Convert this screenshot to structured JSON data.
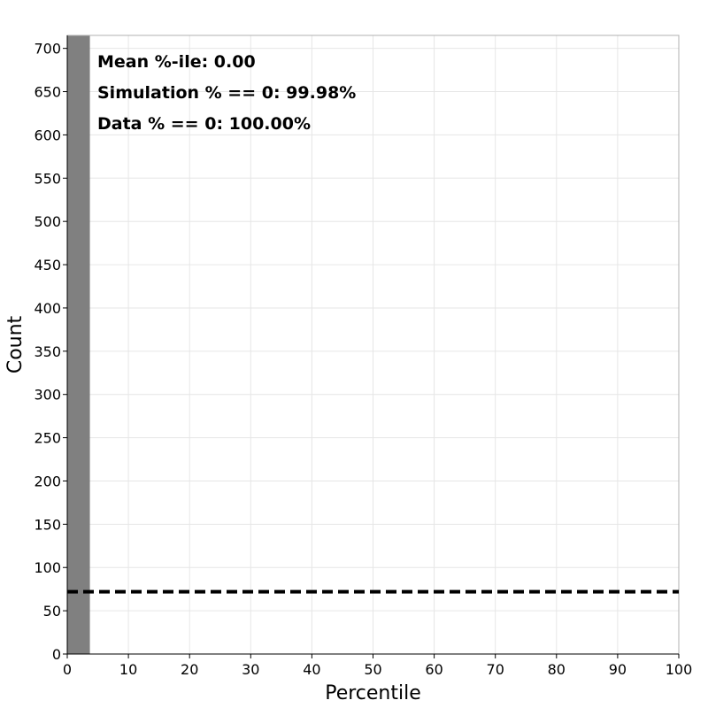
{
  "chart_data": {
    "type": "bar",
    "xlabel": "Percentile",
    "ylabel": "Count",
    "xlim": [
      0,
      100
    ],
    "ylim": [
      0,
      715
    ],
    "xticks": [
      0,
      10,
      20,
      30,
      40,
      50,
      60,
      70,
      80,
      90,
      100
    ],
    "yticks": [
      0,
      50,
      100,
      150,
      200,
      250,
      300,
      350,
      400,
      450,
      500,
      550,
      600,
      650,
      700
    ],
    "grid": true,
    "bars": [
      {
        "x0": 0,
        "x1": 3.7,
        "value": 715
      }
    ],
    "bar_color": "#808080",
    "reference_line": {
      "y": 72,
      "style": "dashed",
      "color": "#000000"
    },
    "annotations": [
      "Mean %-ile: 0.00",
      "Simulation % == 0: 99.98%",
      "Data % == 0: 100.00%"
    ]
  }
}
